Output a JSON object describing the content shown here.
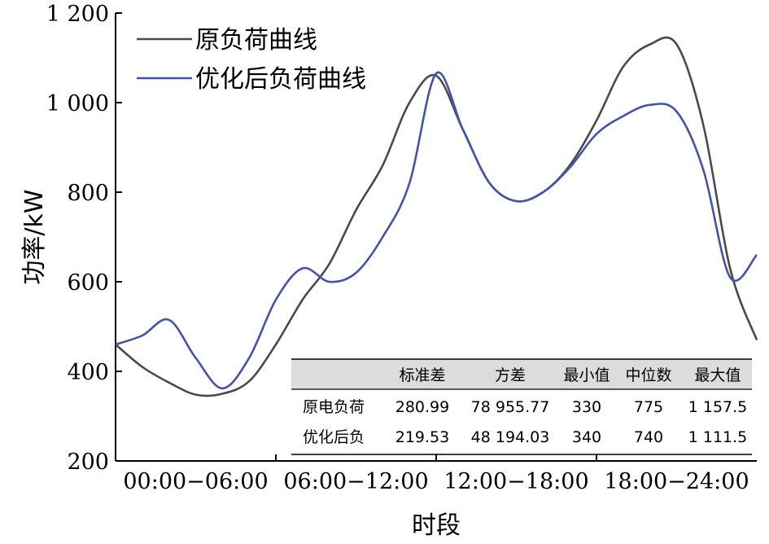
{
  "chart_data": {
    "type": "line",
    "xlabel": "时段",
    "ylabel": "功率/kW",
    "ylim": [
      200,
      1200
    ],
    "xlim": [
      0,
      24
    ],
    "yticks": [
      200,
      400,
      600,
      800,
      1000,
      1200
    ],
    "ytick_labels": [
      "200",
      "400",
      "600",
      "800",
      "1 000",
      "1 200"
    ],
    "x_categories": [
      "00:00−06:00",
      "06:00−12:00",
      "12:00−18:00",
      "18:00−24:00"
    ],
    "legend_position": "top-left",
    "series": [
      {
        "name": "原负荷曲线",
        "color": "#4a4a4a",
        "x": [
          0,
          1,
          2,
          3,
          4,
          5,
          6,
          7,
          8,
          9,
          10,
          11,
          12,
          13,
          14,
          15,
          16,
          17,
          18,
          19,
          20,
          21,
          22,
          23,
          24
        ],
        "y": [
          460,
          410,
          375,
          348,
          350,
          378,
          460,
          560,
          640,
          760,
          860,
          1000,
          1060,
          940,
          820,
          780,
          800,
          860,
          960,
          1080,
          1130,
          1130,
          950,
          630,
          470
        ]
      },
      {
        "name": "优化后负荷曲线",
        "color": "#4452a8",
        "x": [
          0,
          1,
          2,
          3,
          4,
          5,
          6,
          7,
          8,
          9,
          10,
          11,
          12,
          13,
          14,
          15,
          16,
          17,
          18,
          19,
          20,
          21,
          22,
          23,
          24
        ],
        "y": [
          460,
          480,
          515,
          430,
          362,
          430,
          560,
          630,
          600,
          620,
          700,
          820,
          1065,
          940,
          820,
          780,
          800,
          855,
          930,
          970,
          995,
          980,
          850,
          610,
          660
        ]
      }
    ],
    "table": {
      "headers": [
        "",
        "标准差",
        "方差",
        "最小值",
        "中位数",
        "最大值"
      ],
      "rows": [
        [
          "原电负荷",
          "280.99",
          "78 955.77",
          "330",
          "775",
          "1 157.5"
        ],
        [
          "优化后负",
          "219.53",
          "48 194.03",
          "340",
          "740",
          "1 111.5"
        ]
      ]
    }
  }
}
